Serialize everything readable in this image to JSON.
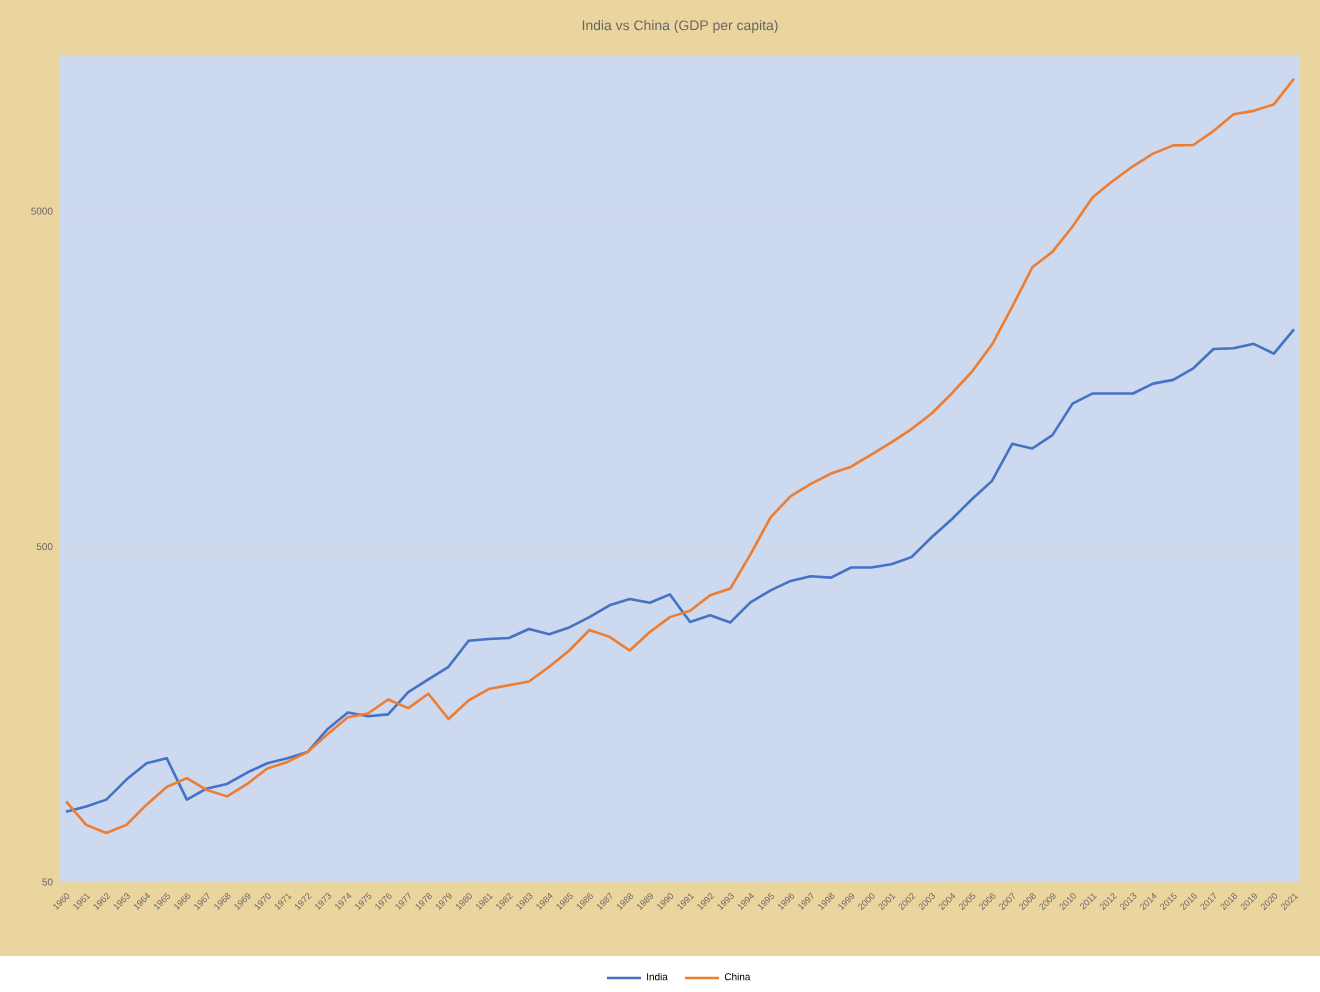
{
  "chart_data": {
    "type": "line",
    "title": "India vs China (GDP per capita)",
    "categories": [
      "1960",
      "1961",
      "1962",
      "1963",
      "1964",
      "1965",
      "1966",
      "1967",
      "1968",
      "1969",
      "1970",
      "1971",
      "1972",
      "1973",
      "1974",
      "1975",
      "1976",
      "1977",
      "1978",
      "1979",
      "1980",
      "1981",
      "1982",
      "1983",
      "1984",
      "1985",
      "1986",
      "1987",
      "1988",
      "1989",
      "1990",
      "1991",
      "1992",
      "1993",
      "1994",
      "1995",
      "1996",
      "1997",
      "1998",
      "1999",
      "2000",
      "2001",
      "2002",
      "2003",
      "2004",
      "2005",
      "2006",
      "2007",
      "2008",
      "2009",
      "2010",
      "2011",
      "2012",
      "2013",
      "2014",
      "2015",
      "2016",
      "2017",
      "2018",
      "2019",
      "2020",
      "2021"
    ],
    "series": [
      {
        "name": "India",
        "color": "#4472c4",
        "values": [
          81,
          84,
          88,
          101,
          113,
          117,
          88,
          95,
          98,
          106,
          113,
          117,
          122,
          143,
          160,
          156,
          158,
          184,
          201,
          219,
          262,
          265,
          267,
          284,
          274,
          287,
          308,
          334,
          349,
          340,
          360,
          298,
          312,
          297,
          341,
          370,
          395,
          408,
          404,
          433,
          433,
          443,
          465,
          533,
          603,
          692,
          785,
          1012,
          980,
          1074,
          1334,
          1430,
          1430,
          1430,
          1530,
          1570,
          1700,
          1940,
          1950,
          2010,
          1880,
          2220
        ]
      },
      {
        "name": "China",
        "color": "#ed7d31",
        "values": [
          87,
          74,
          70,
          74,
          85,
          96,
          102,
          94,
          90,
          98,
          109,
          114,
          122,
          138,
          155,
          159,
          175,
          165,
          182,
          153,
          174,
          188,
          193,
          198,
          219,
          245,
          282,
          269,
          245,
          278,
          308,
          322,
          358,
          375,
          474,
          611,
          707,
          769,
          825,
          865,
          940,
          1022,
          1120,
          1246,
          1430,
          1660,
          2000,
          2590,
          3400,
          3780,
          4500,
          5500,
          6150,
          6800,
          7420,
          7850,
          7870,
          8660,
          9720,
          9950,
          10400,
          12400
        ]
      }
    ],
    "log": "y",
    "ylim": [
      50,
      14500
    ],
    "yticks": [
      50,
      500,
      5000
    ],
    "grid": "y",
    "legend": "bottom",
    "marker": "none",
    "line_style": "solid"
  }
}
